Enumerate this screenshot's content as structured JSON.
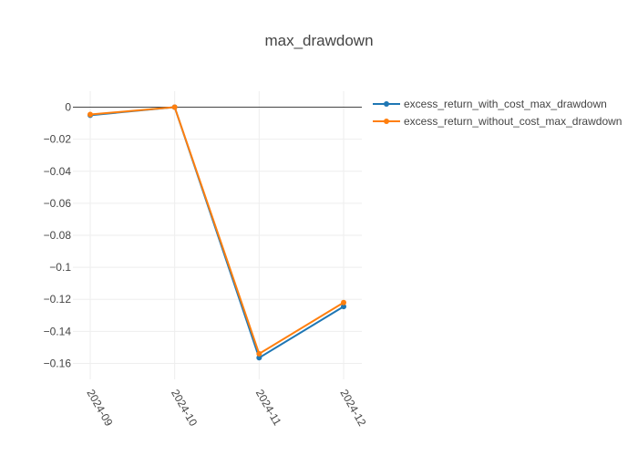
{
  "chart_data": {
    "type": "line",
    "title": "max_drawdown",
    "xlabel": "",
    "ylabel": "",
    "categories": [
      "2024-09",
      "2024-10",
      "2024-11",
      "2024-12"
    ],
    "ylim": [
      -0.17,
      0.01
    ],
    "yticks": [
      0,
      -0.02,
      -0.04,
      -0.06,
      -0.08,
      -0.1,
      -0.12,
      -0.14,
      -0.16
    ],
    "ytick_labels": [
      "0",
      "−0.02",
      "−0.04",
      "−0.06",
      "−0.08",
      "−0.1",
      "−0.12",
      "−0.14",
      "−0.16"
    ],
    "grid": true,
    "legend_position": "top-right",
    "series": [
      {
        "name": "excess_return_with_cost_max_drawdown",
        "color": "#1f77b4",
        "values": [
          -0.005,
          0.0,
          -0.1565,
          -0.1245
        ]
      },
      {
        "name": "excess_return_without_cost_max_drawdown",
        "color": "#ff7f0e",
        "values": [
          -0.0045,
          0.0,
          -0.154,
          -0.122
        ]
      }
    ]
  }
}
